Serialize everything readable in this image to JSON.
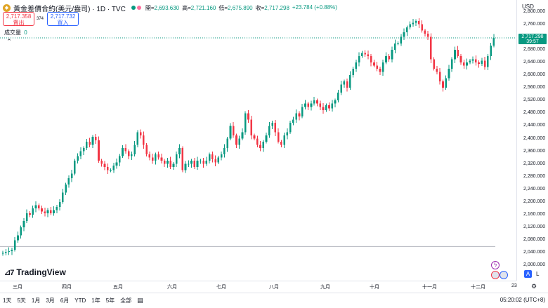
{
  "header": {
    "symbol_title": "黃金差價合約(美元/盎司) · 1D · TVC",
    "ohlc": [
      {
        "label": "開=",
        "value": "2,693.630"
      },
      {
        "label": "高=",
        "value": "2,721.160"
      },
      {
        "label": "低=",
        "value": "2,675.890"
      },
      {
        "label": "收=",
        "value": "2,717.298"
      },
      {
        "label": "",
        "value": "+23.784 (+0.88%)"
      }
    ]
  },
  "trade": {
    "sell_price": "2,717.358",
    "sell_label": "賣出",
    "spread": "374",
    "buy_price": "2,717.732",
    "buy_label": "買入"
  },
  "volume": {
    "label": "成交量",
    "value": "0"
  },
  "price_axis": {
    "currency": "USD",
    "ticks": [
      "2,800.000",
      "2,760.000",
      "2,720.000",
      "2,680.000",
      "2,640.000",
      "2,600.000",
      "2,560.000",
      "2,520.000",
      "2,480.000",
      "2,440.000",
      "2,400.000",
      "2,360.000",
      "2,320.000",
      "2,280.000",
      "2,240.000",
      "2,200.000",
      "2,160.000",
      "2,120.000",
      "2,080.000",
      "2,040.000",
      "2,000.000"
    ],
    "last_price": "2,717.298",
    "countdown": "39:57"
  },
  "time_axis": {
    "labels": [
      "三月",
      "四月",
      "五月",
      "六月",
      "七月",
      "八月",
      "九月",
      "十月",
      "十一月",
      "十二月",
      "23"
    ]
  },
  "bottom": {
    "ranges": [
      "1天",
      "5天",
      "1月",
      "3月",
      "6月",
      "YTD",
      "1年",
      "5年",
      "全部"
    ],
    "clock": "05:20:02 (UTC+8)"
  },
  "brand": {
    "name": "TradingView"
  },
  "side": {
    "auto_label": "A",
    "log_label": "L"
  },
  "colors": {
    "up": "#089981",
    "down": "#f23645",
    "accent": "#2962ff"
  },
  "chart_data": {
    "type": "candlestick",
    "ylim": [
      1990,
      2810
    ],
    "series": {
      "closes": [
        2040,
        2043,
        2045,
        2050,
        2080,
        2095,
        2120,
        2140,
        2165,
        2160,
        2180,
        2190,
        2180,
        2170,
        2165,
        2175,
        2165,
        2175,
        2185,
        2200,
        2230,
        2255,
        2275,
        2290,
        2330,
        2345,
        2360,
        2370,
        2390,
        2380,
        2405,
        2395,
        2330,
        2320,
        2310,
        2300,
        2300,
        2315,
        2325,
        2345,
        2370,
        2360,
        2345,
        2350,
        2380,
        2420,
        2410,
        2380,
        2350,
        2340,
        2330,
        2350,
        2340,
        2330,
        2320,
        2330,
        2310,
        2320,
        2350,
        2370,
        2300,
        2320,
        2320,
        2330,
        2310,
        2330,
        2330,
        2320,
        2330,
        2350,
        2335,
        2325,
        2340,
        2350,
        2370,
        2400,
        2440,
        2410,
        2380,
        2400,
        2420,
        2480,
        2460,
        2410,
        2400,
        2380,
        2370,
        2390,
        2410,
        2440,
        2450,
        2420,
        2390,
        2380,
        2410,
        2420,
        2450,
        2460,
        2480,
        2470,
        2500,
        2510,
        2500,
        2510,
        2520,
        2510,
        2500,
        2490,
        2505,
        2495,
        2510,
        2520,
        2545,
        2570,
        2580,
        2560,
        2600,
        2620,
        2640,
        2660,
        2670,
        2665,
        2660,
        2640,
        2630,
        2620,
        2610,
        2640,
        2660,
        2650,
        2680,
        2700,
        2700,
        2720,
        2735,
        2750,
        2760,
        2765,
        2770,
        2760,
        2740,
        2730,
        2720,
        2650,
        2620,
        2610,
        2580,
        2560,
        2590,
        2620,
        2650,
        2680,
        2660,
        2640,
        2630,
        2640,
        2645,
        2650,
        2640,
        2635,
        2645,
        2625,
        2660,
        2693,
        2717
      ]
    }
  }
}
